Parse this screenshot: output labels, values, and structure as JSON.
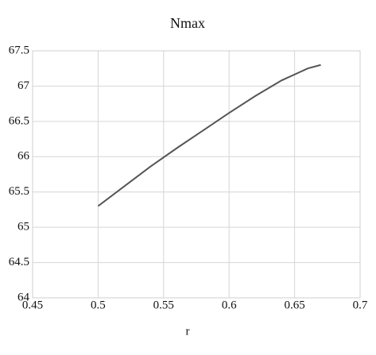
{
  "chart_data": {
    "type": "line",
    "title": "Nmax",
    "x_label": "r",
    "x": [
      0.5,
      0.52,
      0.54,
      0.56,
      0.58,
      0.6,
      0.62,
      0.64,
      0.66,
      0.67
    ],
    "series": [
      {
        "name": "Nmax",
        "color": "#555555",
        "values": [
          65.3,
          65.58,
          65.86,
          66.12,
          66.37,
          66.62,
          66.86,
          67.08,
          67.25,
          67.3
        ]
      }
    ],
    "xlim": [
      0.45,
      0.7
    ],
    "xticks": [
      0.45,
      0.5,
      0.55,
      0.6,
      0.65,
      0.7
    ],
    "ylim": [
      64,
      67.5
    ],
    "yticks": [
      64,
      64.5,
      65,
      65.5,
      66,
      66.5,
      67,
      67.5
    ],
    "grid": true,
    "legend": false
  }
}
